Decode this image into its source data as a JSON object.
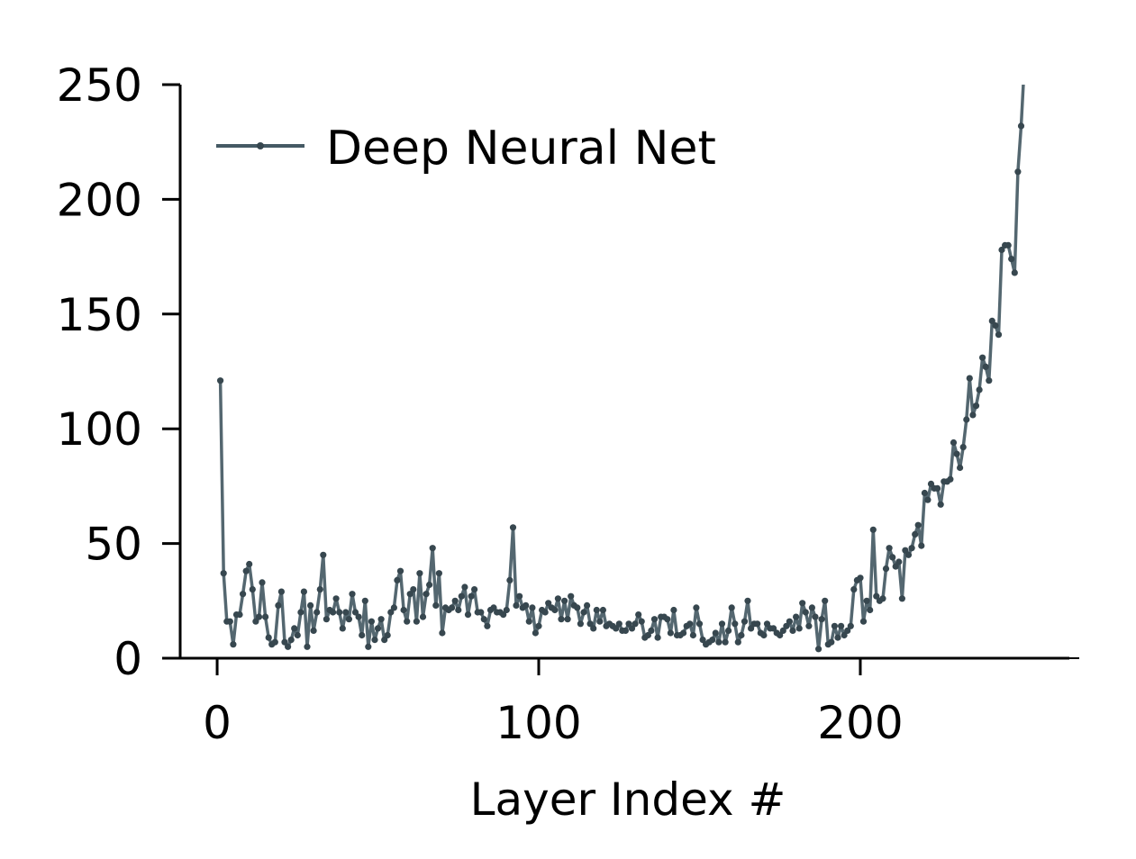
{
  "chart_data": {
    "type": "line",
    "title": "",
    "xlabel": "Layer Index #",
    "ylabel": "",
    "xlim": [
      -11.5,
      265
    ],
    "ylim": [
      0,
      250
    ],
    "xticks": [
      0,
      100,
      200
    ],
    "yticks": [
      0,
      50,
      100,
      150,
      200,
      250
    ],
    "grid": false,
    "legend": {
      "position": "top-left",
      "entries": [
        "Deep Neural Net"
      ]
    },
    "series": [
      {
        "name": "Deep Neural Net",
        "color": "#455a64",
        "x": [
          1,
          2,
          3,
          4,
          5,
          6,
          7,
          8,
          9,
          10,
          11,
          12,
          13,
          14,
          15,
          16,
          17,
          18,
          19,
          20,
          21,
          22,
          23,
          24,
          25,
          26,
          27,
          28,
          29,
          30,
          31,
          32,
          33,
          34,
          35,
          36,
          37,
          38,
          39,
          40,
          41,
          42,
          43,
          44,
          45,
          46,
          47,
          48,
          49,
          50,
          51,
          52,
          53,
          54,
          55,
          56,
          57,
          58,
          59,
          60,
          61,
          62,
          63,
          64,
          65,
          66,
          67,
          68,
          69,
          70,
          71,
          72,
          73,
          74,
          75,
          76,
          77,
          78,
          79,
          80,
          81,
          82,
          83,
          84,
          85,
          86,
          87,
          88,
          89,
          90,
          91,
          92,
          93,
          94,
          95,
          96,
          97,
          98,
          99,
          100,
          101,
          102,
          103,
          104,
          105,
          106,
          107,
          108,
          109,
          110,
          111,
          112,
          113,
          114,
          115,
          116,
          117,
          118,
          119,
          120,
          121,
          122,
          123,
          124,
          125,
          126,
          127,
          128,
          129,
          130,
          131,
          132,
          133,
          134,
          135,
          136,
          137,
          138,
          139,
          140,
          141,
          142,
          143,
          144,
          145,
          146,
          147,
          148,
          149,
          150,
          151,
          152,
          153,
          154,
          155,
          156,
          157,
          158,
          159,
          160,
          161,
          162,
          163,
          164,
          165,
          166,
          167,
          168,
          169,
          170,
          171,
          172,
          173,
          174,
          175,
          176,
          177,
          178,
          179,
          180,
          181,
          182,
          183,
          184,
          185,
          186,
          187,
          188,
          189,
          190,
          191,
          192,
          193,
          194,
          195,
          196,
          197,
          198,
          199,
          200,
          201,
          202,
          203,
          204,
          205,
          206,
          207,
          208,
          209,
          210,
          211,
          212,
          213,
          214,
          215,
          216,
          217,
          218,
          219,
          220,
          221,
          222,
          223,
          224,
          225,
          226,
          227,
          228,
          229,
          230,
          231,
          232,
          233,
          234,
          235,
          236,
          237,
          238,
          239,
          240,
          241,
          242,
          243,
          244,
          245,
          246,
          247,
          248,
          249,
          250,
          251
        ],
        "y": [
          121,
          37,
          16,
          16,
          6,
          19,
          19,
          28,
          38,
          41,
          30,
          16,
          18,
          33,
          18,
          9,
          6,
          7,
          23,
          29,
          7,
          5,
          8,
          13,
          10,
          20,
          29,
          5,
          23,
          12,
          20,
          30,
          45,
          17,
          21,
          20,
          26,
          20,
          13,
          20,
          17,
          28,
          20,
          18,
          10,
          25,
          5,
          16,
          8,
          13,
          17,
          8,
          10,
          20,
          22,
          34,
          38,
          21,
          16,
          28,
          30,
          16,
          37,
          18,
          28,
          32,
          48,
          23,
          37,
          11,
          22,
          21,
          22,
          25,
          21,
          27,
          31,
          19,
          27,
          30,
          20,
          20,
          17,
          14,
          21,
          22,
          20,
          20,
          19,
          21,
          34,
          57,
          23,
          27,
          22,
          23,
          16,
          22,
          11,
          14,
          21,
          20,
          24,
          22,
          21,
          26,
          17,
          25,
          17,
          27,
          23,
          22,
          15,
          20,
          23,
          15,
          13,
          21,
          16,
          21,
          14,
          15,
          14,
          13,
          15,
          12,
          12,
          15,
          13,
          15,
          19,
          16,
          9,
          10,
          12,
          17,
          9,
          18,
          18,
          17,
          11,
          21,
          10,
          10,
          11,
          14,
          15,
          10,
          22,
          15,
          8,
          6,
          7,
          8,
          11,
          7,
          15,
          7,
          12,
          22,
          15,
          7,
          10,
          16,
          25,
          13,
          15,
          15,
          11,
          10,
          15,
          13,
          13,
          11,
          10,
          12,
          14,
          16,
          12,
          18,
          13,
          24,
          20,
          14,
          22,
          18,
          4,
          17,
          25,
          6,
          7,
          14,
          9,
          14,
          10,
          12,
          14,
          30,
          34,
          35,
          16,
          25,
          21,
          56,
          27,
          25,
          26,
          39,
          48,
          44,
          40,
          42,
          26,
          47,
          45,
          48,
          54,
          58,
          49,
          72,
          69,
          76,
          74,
          74,
          67,
          77,
          77,
          78,
          94,
          89,
          83,
          92,
          104,
          122,
          106,
          110,
          117,
          131,
          127,
          121,
          147,
          145,
          141,
          178,
          180,
          180,
          174,
          168,
          212,
          232,
          258
        ]
      }
    ]
  }
}
